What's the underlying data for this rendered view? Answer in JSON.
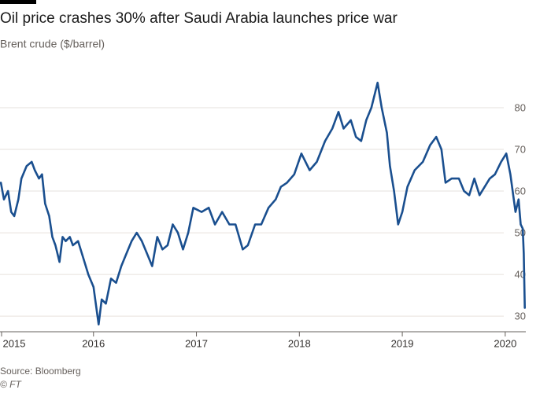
{
  "chart_data": {
    "type": "line",
    "title": "Oil price crashes 30% after Saudi Arabia launches price war",
    "subtitle": "Brent crude ($/barrel)",
    "source": "Source: Bloomberg",
    "credit": "© FT",
    "xlim": [
      2015,
      2020.2
    ],
    "xticks": [
      2015,
      2016,
      2017,
      2018,
      2019,
      2020
    ],
    "ylim": [
      27,
      90
    ],
    "yticks": [
      30,
      40,
      50,
      60,
      70,
      80
    ],
    "grid": true,
    "series": [
      {
        "name": "Brent crude",
        "color": "#1a4f8f",
        "x": [
          2015.1,
          2015.13,
          2015.17,
          2015.2,
          2015.23,
          2015.27,
          2015.3,
          2015.35,
          2015.4,
          2015.43,
          2015.47,
          2015.5,
          2015.53,
          2015.57,
          2015.6,
          2015.63,
          2015.67,
          2015.7,
          2015.73,
          2015.77,
          2015.8,
          2015.85,
          2015.9,
          2015.95,
          2016.0,
          2016.05,
          2016.08,
          2016.12,
          2016.17,
          2016.22,
          2016.27,
          2016.32,
          2016.37,
          2016.42,
          2016.47,
          2016.52,
          2016.57,
          2016.62,
          2016.67,
          2016.72,
          2016.77,
          2016.82,
          2016.87,
          2016.92,
          2016.97,
          2017.05,
          2017.12,
          2017.18,
          2017.25,
          2017.32,
          2017.38,
          2017.45,
          2017.5,
          2017.57,
          2017.63,
          2017.7,
          2017.77,
          2017.82,
          2017.88,
          2017.95,
          2018.02,
          2018.1,
          2018.17,
          2018.25,
          2018.32,
          2018.38,
          2018.43,
          2018.5,
          2018.55,
          2018.6,
          2018.65,
          2018.7,
          2018.76,
          2018.8,
          2018.85,
          2018.88,
          2018.92,
          2018.96,
          2019.0,
          2019.05,
          2019.12,
          2019.2,
          2019.27,
          2019.33,
          2019.38,
          2019.42,
          2019.48,
          2019.55,
          2019.6,
          2019.65,
          2019.7,
          2019.75,
          2019.8,
          2019.85,
          2019.9,
          2019.96,
          2020.01,
          2020.05,
          2020.1,
          2020.13,
          2020.15,
          2020.17,
          2020.18,
          2020.19
        ],
        "values": [
          62,
          58,
          60,
          55,
          54,
          58,
          63,
          66,
          67,
          65,
          63,
          64,
          57,
          54,
          49,
          47,
          43,
          49,
          48,
          49,
          47,
          48,
          44,
          40,
          37,
          28,
          34,
          33,
          39,
          38,
          42,
          45,
          48,
          50,
          48,
          45,
          42,
          49,
          46,
          47,
          52,
          50,
          46,
          50,
          56,
          55,
          56,
          52,
          55,
          52,
          52,
          46,
          47,
          52,
          52,
          56,
          58,
          61,
          62,
          64,
          69,
          65,
          67,
          72,
          75,
          79,
          75,
          77,
          73,
          72,
          77,
          80,
          86,
          80,
          74,
          66,
          60,
          52,
          55,
          61,
          65,
          67,
          71,
          73,
          70,
          62,
          63,
          63,
          60,
          59,
          63,
          59,
          61,
          63,
          64,
          67,
          69,
          64,
          55,
          58,
          52,
          51,
          45,
          32
        ]
      }
    ]
  }
}
